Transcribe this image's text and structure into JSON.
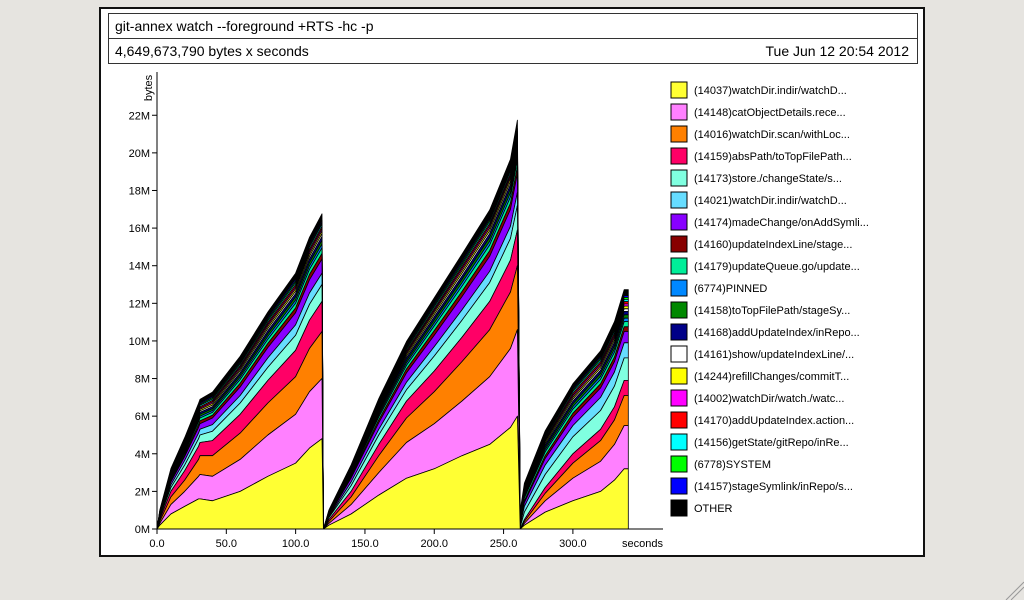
{
  "header": {
    "title": "git-annex watch --foreground +RTS -hc -p",
    "summary": "4,649,673,790 bytes x seconds",
    "date": "Tue Jun 12 20:54 2012"
  },
  "chart_data": {
    "type": "area",
    "stacked": true,
    "ylabel": "bytes",
    "xlabel": "seconds",
    "xlim": [
      0,
      365
    ],
    "ylim": [
      0,
      24.3
    ],
    "y_unit_suffix": "M",
    "x_ticks": [
      "0.0",
      "50.0",
      "100.0",
      "150.0",
      "200.0",
      "250.0",
      "300.0"
    ],
    "x_tick_values": [
      0,
      50,
      100,
      150,
      200,
      250,
      300
    ],
    "y_ticks": [
      "0M",
      "2M",
      "4M",
      "6M",
      "8M",
      "10M",
      "12M",
      "14M",
      "16M",
      "18M",
      "20M",
      "22M"
    ],
    "y_tick_values": [
      0,
      2,
      4,
      6,
      8,
      10,
      12,
      14,
      16,
      18,
      20,
      22
    ],
    "x": [
      0,
      2,
      10,
      20,
      30,
      31,
      40,
      60,
      80,
      100,
      110,
      119,
      120,
      124,
      140,
      160,
      180,
      200,
      220,
      240,
      255,
      260,
      262,
      265,
      280,
      300,
      320,
      330,
      337,
      340
    ],
    "series": [
      {
        "name": "(14037)watchDir.indir/watchD...",
        "color": "#ffff33",
        "values": [
          0,
          0.2,
          0.8,
          1.2,
          1.6,
          1.6,
          1.5,
          2.0,
          2.8,
          3.5,
          4.3,
          4.8,
          0,
          0.2,
          0.8,
          1.8,
          2.7,
          3.2,
          3.9,
          4.5,
          5.4,
          6.0,
          0,
          0.2,
          0.9,
          1.5,
          2.0,
          2.6,
          3.2,
          3.2
        ]
      },
      {
        "name": "(14148)catObjectDetails.rece...",
        "color": "#ff80ff",
        "values": [
          0,
          0.1,
          0.5,
          0.8,
          1.2,
          1.3,
          1.3,
          1.7,
          2.2,
          2.6,
          3.0,
          3.2,
          0,
          0.1,
          0.5,
          1.2,
          1.9,
          2.4,
          2.9,
          3.6,
          4.2,
          4.6,
          0,
          0.1,
          0.6,
          1.2,
          1.6,
          1.9,
          2.3,
          2.3
        ]
      },
      {
        "name": "(14016)watchDir.scan/withLoc...",
        "color": "#ff8000",
        "values": [
          0,
          0.1,
          0.4,
          0.6,
          0.9,
          1.0,
          1.1,
          1.4,
          1.7,
          2.0,
          2.3,
          2.5,
          0,
          0.1,
          0.4,
          0.9,
          1.3,
          1.7,
          2.1,
          2.5,
          3.0,
          3.4,
          0,
          0.1,
          0.4,
          0.8,
          1.1,
          1.3,
          1.6,
          1.6
        ]
      },
      {
        "name": "(14159)absPath/toTopFilePath...",
        "color": "#ff0066",
        "values": [
          0,
          0.1,
          0.3,
          0.5,
          0.7,
          0.7,
          0.8,
          1.0,
          1.2,
          1.4,
          1.5,
          1.6,
          0,
          0.1,
          0.3,
          0.6,
          0.9,
          1.1,
          1.3,
          1.5,
          1.7,
          1.9,
          0,
          0.1,
          0.3,
          0.5,
          0.6,
          0.7,
          0.8,
          0.8
        ]
      },
      {
        "name": "(14173)store./changeState/s...",
        "color": "#80ffe0",
        "values": [
          0,
          0.1,
          0.2,
          0.3,
          0.4,
          0.4,
          0.5,
          0.6,
          0.7,
          0.8,
          0.85,
          0.9,
          0,
          0.1,
          0.3,
          0.5,
          0.6,
          0.8,
          0.9,
          1.0,
          1.15,
          1.3,
          0.1,
          0.4,
          0.7,
          0.9,
          1.0,
          1.1,
          1.2,
          1.2
        ]
      },
      {
        "name": "(14021)watchDir.indir/watchD...",
        "color": "#66ddff",
        "values": [
          0,
          0.05,
          0.15,
          0.25,
          0.3,
          0.3,
          0.35,
          0.4,
          0.5,
          0.55,
          0.6,
          0.6,
          0,
          0.05,
          0.2,
          0.3,
          0.4,
          0.5,
          0.55,
          0.6,
          0.65,
          0.7,
          0.1,
          0.3,
          0.5,
          0.6,
          0.7,
          0.75,
          0.8,
          0.8
        ]
      },
      {
        "name": "(14174)madeChange/onAddSymli...",
        "color": "#8800ff",
        "values": [
          0,
          0.05,
          0.15,
          0.2,
          0.3,
          0.3,
          0.35,
          0.45,
          0.55,
          0.65,
          0.7,
          0.75,
          0,
          0.05,
          0.2,
          0.35,
          0.5,
          0.6,
          0.7,
          0.8,
          0.9,
          1.0,
          0.1,
          0.2,
          0.35,
          0.45,
          0.5,
          0.55,
          0.6,
          0.6
        ]
      },
      {
        "name": "(14160)updateIndexLine/stage...",
        "color": "#880000",
        "values": [
          0,
          0.03,
          0.08,
          0.1,
          0.15,
          0.15,
          0.15,
          0.2,
          0.22,
          0.25,
          0.28,
          0.3,
          0,
          0.03,
          0.08,
          0.15,
          0.2,
          0.25,
          0.28,
          0.3,
          0.33,
          0.35,
          0.05,
          0.1,
          0.15,
          0.2,
          0.22,
          0.24,
          0.25,
          0.25
        ]
      },
      {
        "name": "(14179)updateQueue.go/update...",
        "color": "#00ee99",
        "values": [
          0,
          0.03,
          0.08,
          0.1,
          0.15,
          0.15,
          0.15,
          0.2,
          0.22,
          0.25,
          0.28,
          0.3,
          0,
          0.03,
          0.08,
          0.15,
          0.2,
          0.25,
          0.28,
          0.3,
          0.33,
          0.35,
          0.1,
          0.15,
          0.2,
          0.22,
          0.24,
          0.26,
          0.28,
          0.28
        ]
      },
      {
        "name": "(6774)PINNED",
        "color": "#0088ff",
        "values": [
          0,
          0.02,
          0.05,
          0.08,
          0.1,
          0.1,
          0.1,
          0.12,
          0.15,
          0.17,
          0.18,
          0.2,
          0,
          0.02,
          0.05,
          0.1,
          0.13,
          0.16,
          0.18,
          0.2,
          0.22,
          0.23,
          0.05,
          0.08,
          0.12,
          0.14,
          0.16,
          0.17,
          0.18,
          0.18
        ]
      },
      {
        "name": "(14158)toTopFilePath/stageSy...",
        "color": "#008800",
        "values": [
          0,
          0.02,
          0.05,
          0.08,
          0.1,
          0.1,
          0.1,
          0.12,
          0.15,
          0.17,
          0.18,
          0.2,
          0,
          0.02,
          0.05,
          0.1,
          0.13,
          0.16,
          0.18,
          0.2,
          0.22,
          0.23,
          0.05,
          0.08,
          0.12,
          0.14,
          0.16,
          0.17,
          0.18,
          0.18
        ]
      },
      {
        "name": "(14168)addUpdateIndex/inRepo...",
        "color": "#000088",
        "values": [
          0,
          0.02,
          0.05,
          0.08,
          0.1,
          0.1,
          0.1,
          0.12,
          0.15,
          0.17,
          0.18,
          0.2,
          0,
          0.02,
          0.05,
          0.1,
          0.13,
          0.16,
          0.18,
          0.2,
          0.22,
          0.23,
          0.05,
          0.08,
          0.12,
          0.14,
          0.16,
          0.17,
          0.18,
          0.18
        ]
      },
      {
        "name": "(14161)show/updateIndexLine/...",
        "color": "#ffffff",
        "values": [
          0,
          0.02,
          0.05,
          0.07,
          0.08,
          0.08,
          0.09,
          0.1,
          0.12,
          0.13,
          0.14,
          0.15,
          0,
          0.02,
          0.05,
          0.08,
          0.1,
          0.12,
          0.14,
          0.15,
          0.16,
          0.17,
          0.04,
          0.06,
          0.09,
          0.11,
          0.12,
          0.13,
          0.14,
          0.14
        ]
      },
      {
        "name": "(14244)refillChanges/commitT...",
        "color": "#ffff00",
        "values": [
          0,
          0.02,
          0.05,
          0.07,
          0.08,
          0.08,
          0.09,
          0.1,
          0.12,
          0.13,
          0.14,
          0.15,
          0,
          0.02,
          0.05,
          0.08,
          0.1,
          0.12,
          0.14,
          0.15,
          0.16,
          0.17,
          0.04,
          0.06,
          0.09,
          0.11,
          0.12,
          0.13,
          0.14,
          0.14
        ]
      },
      {
        "name": "(14002)watchDir/watch./watc...",
        "color": "#ff00ff",
        "values": [
          0,
          0.02,
          0.04,
          0.06,
          0.07,
          0.07,
          0.08,
          0.09,
          0.1,
          0.11,
          0.12,
          0.12,
          0,
          0.02,
          0.04,
          0.07,
          0.09,
          0.1,
          0.11,
          0.12,
          0.13,
          0.14,
          0.04,
          0.06,
          0.08,
          0.1,
          0.11,
          0.12,
          0.12,
          0.12
        ]
      },
      {
        "name": "(14170)addUpdateIndex.action...",
        "color": "#ff0000",
        "values": [
          0,
          0.02,
          0.04,
          0.06,
          0.07,
          0.07,
          0.08,
          0.09,
          0.1,
          0.11,
          0.12,
          0.12,
          0,
          0.02,
          0.04,
          0.07,
          0.09,
          0.1,
          0.11,
          0.12,
          0.13,
          0.14,
          0.04,
          0.06,
          0.08,
          0.1,
          0.11,
          0.12,
          0.12,
          0.12
        ]
      },
      {
        "name": "(14156)getState/gitRepo/inRe...",
        "color": "#00ffff",
        "values": [
          0,
          0.02,
          0.04,
          0.06,
          0.07,
          0.07,
          0.08,
          0.09,
          0.1,
          0.11,
          0.12,
          0.12,
          0,
          0.02,
          0.04,
          0.07,
          0.09,
          0.1,
          0.11,
          0.12,
          0.13,
          0.14,
          0.04,
          0.06,
          0.08,
          0.1,
          0.11,
          0.12,
          0.12,
          0.12
        ]
      },
      {
        "name": "(6778)SYSTEM",
        "color": "#00ff00",
        "values": [
          0,
          0.02,
          0.04,
          0.05,
          0.06,
          0.06,
          0.07,
          0.08,
          0.09,
          0.1,
          0.1,
          0.1,
          0,
          0.02,
          0.04,
          0.06,
          0.08,
          0.09,
          0.1,
          0.1,
          0.11,
          0.12,
          0.04,
          0.05,
          0.07,
          0.08,
          0.09,
          0.1,
          0.1,
          0.1
        ]
      },
      {
        "name": "(14157)stageSymlink/inRepo/s...",
        "color": "#0000ff",
        "values": [
          0,
          0.02,
          0.04,
          0.05,
          0.06,
          0.06,
          0.07,
          0.08,
          0.09,
          0.1,
          0.1,
          0.1,
          0,
          0.02,
          0.04,
          0.06,
          0.08,
          0.09,
          0.1,
          0.1,
          0.11,
          0.12,
          0.04,
          0.05,
          0.07,
          0.08,
          0.09,
          0.1,
          0.1,
          0.1
        ]
      },
      {
        "name": "OTHER",
        "color": "#000000",
        "values": [
          0,
          0.05,
          0.1,
          0.15,
          0.2,
          0.2,
          0.22,
          0.25,
          0.28,
          0.3,
          0.32,
          0.35,
          0,
          0.05,
          0.1,
          0.2,
          0.25,
          0.3,
          0.35,
          0.4,
          0.42,
          0.45,
          0.1,
          0.15,
          0.2,
          0.25,
          0.28,
          0.3,
          0.32,
          0.32
        ]
      }
    ],
    "legend_position": "right"
  }
}
